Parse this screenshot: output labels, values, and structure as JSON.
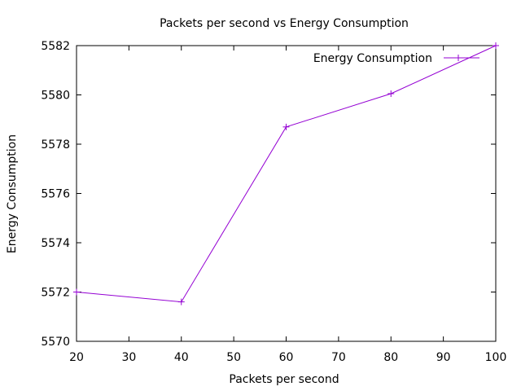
{
  "chart_data": {
    "type": "line",
    "title": "Packets per second vs Energy Consumption",
    "xlabel": "Packets per second",
    "ylabel": "Energy Consumption",
    "xlim": [
      20,
      100
    ],
    "ylim": [
      5570,
      5582
    ],
    "xticks": [
      20,
      30,
      40,
      50,
      60,
      70,
      80,
      90,
      100
    ],
    "yticks": [
      5570,
      5572,
      5574,
      5576,
      5578,
      5580,
      5582
    ],
    "grid": false,
    "legend_position": "top-right",
    "series": [
      {
        "name": "Energy Consumption",
        "color": "#9400d3",
        "marker": "plus",
        "x": [
          20,
          40,
          60,
          80,
          100
        ],
        "y": [
          5572.0,
          5571.6,
          5578.7,
          5580.05,
          5582.0
        ]
      }
    ]
  }
}
